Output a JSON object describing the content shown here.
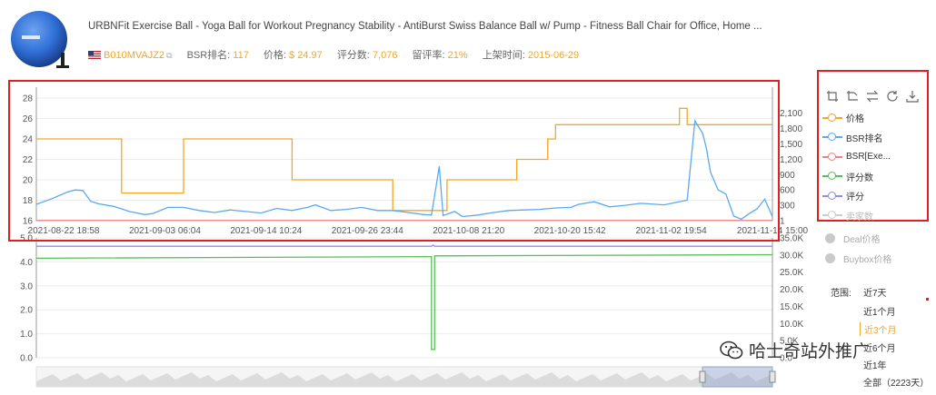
{
  "product": {
    "title": "URBNFit Exercise Ball - Yoga Ball for Workout Pregnancy Stability - AntiBurst Swiss Balance Ball w/ Pump - Fitness Ball Chair for Office, Home ...",
    "asin": "B010MVAJZ2",
    "bsr_label": "BSR排名:",
    "bsr_value": "117",
    "price_label": "价格:",
    "price_value": "$ 24.97",
    "reviews_label": "评分数:",
    "reviews_value": "7,076",
    "retention_label": "留评率:",
    "retention_value": "21%",
    "launch_label": "上架时间:",
    "launch_value": "2015-06-29",
    "flag_icon": "us-flag-icon",
    "ball_color": "#2f6fd6"
  },
  "toolbar": {
    "icons": [
      "zoom-select-icon",
      "zoom-reset-icon",
      "switch-icon",
      "refresh-icon",
      "download-icon"
    ]
  },
  "legend": [
    {
      "label": "价格",
      "color": "#f5a623",
      "active": true
    },
    {
      "label": "BSR排名",
      "color": "#5aa9f0",
      "active": true
    },
    {
      "label": "BSR[Exe...",
      "color": "#f08080",
      "active": true
    },
    {
      "label": "评分数",
      "color": "#55c155",
      "active": true
    },
    {
      "label": "评分",
      "color": "#8f8fe6",
      "active": true
    },
    {
      "label": "卖家数",
      "color": "#cccccc",
      "active": false
    }
  ],
  "legend2": [
    {
      "label": "Deal价格"
    },
    {
      "label": "Buybox价格"
    }
  ],
  "range": {
    "label": "范围:",
    "options": [
      "近7天",
      "近1个月",
      "近3个月",
      "近6个月",
      "近1年",
      "全部（2223天）"
    ],
    "active_index": 2
  },
  "watermark": "哈士奇站外推广",
  "chart_data": [
    {
      "type": "line",
      "x_tick_labels": [
        "2021-08-22 18:58",
        "2021-09-03 06:04",
        "2021-09-14 10:24",
        "2021-09-26 23:44",
        "2021-10-08 21:20",
        "2021-10-20 15:42",
        "2021-11-02 19:54",
        "2021-11-14 15:00"
      ],
      "y_left": {
        "ticks": [
          "16",
          "18",
          "20",
          "22",
          "24",
          "26",
          "28"
        ],
        "range": [
          16,
          28
        ]
      },
      "y_right": {
        "ticks": [
          "1",
          "300",
          "600",
          "900",
          "1,200",
          "1,500",
          "1,800",
          "2,100"
        ],
        "range": [
          1,
          2250
        ]
      },
      "grid": true,
      "series": [
        {
          "name": "价格",
          "axis": "left",
          "color": "#f5a623",
          "step": true,
          "points": [
            [
              0,
              24
            ],
            [
              11,
              24
            ],
            [
              11,
              18.7
            ],
            [
              19,
              18.7
            ],
            [
              19,
              24
            ],
            [
              33,
              24
            ],
            [
              33,
              20
            ],
            [
              46,
              20
            ],
            [
              46,
              17
            ],
            [
              53,
              17
            ],
            [
              53,
              20
            ],
            [
              62,
              20
            ],
            [
              62,
              22
            ],
            [
              66,
              22
            ],
            [
              66,
              24
            ],
            [
              67,
              24
            ],
            [
              67,
              25.4
            ],
            [
              83,
              25.4
            ],
            [
              83,
              27
            ],
            [
              84,
              27
            ],
            [
              84,
              25.4
            ],
            [
              95,
              25.4
            ]
          ]
        },
        {
          "name": "BSR排名",
          "axis": "right",
          "color": "#5aa9f0",
          "points": [
            [
              0,
              320
            ],
            [
              2,
              430
            ],
            [
              4,
              560
            ],
            [
              5,
              600
            ],
            [
              6,
              590
            ],
            [
              7,
              380
            ],
            [
              8,
              330
            ],
            [
              10,
              280
            ],
            [
              12,
              180
            ],
            [
              14,
              120
            ],
            [
              15,
              140
            ],
            [
              17,
              260
            ],
            [
              19,
              260
            ],
            [
              21,
              200
            ],
            [
              23,
              160
            ],
            [
              25,
              210
            ],
            [
              27,
              180
            ],
            [
              29,
              150
            ],
            [
              31,
              240
            ],
            [
              33,
              200
            ],
            [
              35,
              260
            ],
            [
              36,
              310
            ],
            [
              38,
              200
            ],
            [
              40,
              220
            ],
            [
              42,
              260
            ],
            [
              44,
              200
            ],
            [
              46,
              200
            ],
            [
              48,
              160
            ],
            [
              50,
              120
            ],
            [
              51,
              110
            ],
            [
              52,
              1060
            ],
            [
              52.5,
              100
            ],
            [
              54,
              180
            ],
            [
              55,
              80
            ],
            [
              57,
              110
            ],
            [
              59,
              160
            ],
            [
              61,
              200
            ],
            [
              63,
              210
            ],
            [
              65,
              220
            ],
            [
              67,
              250
            ],
            [
              69,
              260
            ],
            [
              70,
              320
            ],
            [
              72,
              370
            ],
            [
              74,
              270
            ],
            [
              76,
              300
            ],
            [
              78,
              340
            ],
            [
              80,
              320
            ],
            [
              81,
              310
            ],
            [
              82,
              340
            ],
            [
              84,
              400
            ],
            [
              85,
              1950
            ],
            [
              86,
              1700
            ],
            [
              86.5,
              1400
            ],
            [
              87,
              950
            ],
            [
              88,
              600
            ],
            [
              89,
              520
            ],
            [
              90,
              90
            ],
            [
              91,
              30
            ],
            [
              92,
              140
            ],
            [
              93,
              230
            ],
            [
              94,
              420
            ],
            [
              95,
              80
            ]
          ]
        },
        {
          "name": "BSR[Exe...",
          "axis": "right",
          "color": "#f08080",
          "points": [
            [
              0,
              5
            ],
            [
              95,
              5
            ]
          ]
        }
      ]
    },
    {
      "type": "line",
      "y_left": {
        "ticks": [
          "0.0",
          "1.0",
          "2.0",
          "3.0",
          "4.0",
          "5.0"
        ],
        "range": [
          0,
          5
        ]
      },
      "y_right": {
        "ticks": [
          "0.0",
          "5.0K",
          "10.0K",
          "15.0K",
          "20.0K",
          "25.0K",
          "30.0K",
          "35.0K"
        ],
        "range": [
          0,
          35000
        ]
      },
      "grid": true,
      "series": [
        {
          "name": "评分数",
          "axis": "left",
          "color": "#55c155",
          "points": [
            [
              0,
              4.15
            ],
            [
              51,
              4.22
            ],
            [
              51,
              0.35
            ],
            [
              51.4,
              0.35
            ],
            [
              51.4,
              4.25
            ],
            [
              95,
              4.3
            ]
          ]
        },
        {
          "name": "评分",
          "axis": "left",
          "color": "#8f8fe6",
          "points": [
            [
              0,
              4.65
            ],
            [
              51,
              4.65
            ],
            [
              51.2,
              4.7
            ],
            [
              51.4,
              4.65
            ],
            [
              95,
              4.65
            ]
          ]
        }
      ]
    }
  ]
}
